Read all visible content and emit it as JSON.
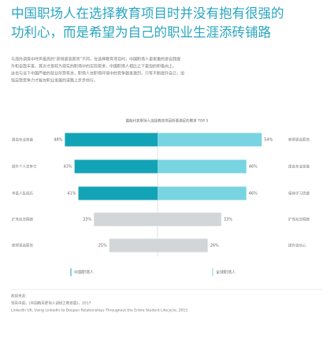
{
  "header": {
    "title_lines": [
      "中国职场人在选择教育项目时并没有抱有很强的",
      "功利心，而是希望为自己的职业生涯添砖铺路"
    ],
    "paragraph_lines": [
      "与海外调查中呼声最高的“获得更高薪资”不同，在选择教育项目时，中国职场人更看重的是自我提",
      "升和自我丰富，其次才是较为现实的职场中的实际需求，中国职场人相比之下更加的积极向上。",
      "这也与当下中国严峻的就业形势有关，职场人在职场环境中的竞争越发激烈，只有不断提升自己，加",
      "强自我竞争力才能在职业发展的道路上步步前行。"
    ]
  },
  "chart_data": {
    "type": "butterfly",
    "title": "最能代表职场人选择教育项目所要满足的需求 TOP 5",
    "xlim": [
      0,
      60
    ],
    "series": [
      {
        "name": "中国职场人",
        "side": "left",
        "categories": [
          "提高专业技能",
          "提升个人竞争力",
          "丰富人生阅历",
          "扩充社交网络",
          "获得更高薪资"
        ],
        "values": [
          48,
          43,
          41,
          33,
          25
        ],
        "value_labels": [
          "48%",
          "43%",
          "41%",
          "33%",
          "25%"
        ],
        "colors": [
          "#13a3b6",
          "#13a3b6",
          "#13a3b6",
          "#d3d6d9",
          "#d3d6d9"
        ]
      },
      {
        "name": "全球职场人",
        "side": "right",
        "categories": [
          "获得更高薪资",
          "提高专业技能",
          "保持学习思维",
          "扩充社交网络",
          "提升自信心"
        ],
        "values": [
          54,
          46,
          46,
          33,
          26
        ],
        "value_labels": [
          "54%",
          "46%",
          "46%",
          "33%",
          "26%"
        ],
        "colors": [
          "#79d4e2",
          "#79d4e2",
          "#79d4e2",
          "#d3d6d9",
          "#d3d6d9"
        ]
      }
    ]
  },
  "footer": {
    "label": "数据来源：",
    "lines": [
      "领英中国，《中国精英职场人调研之教育篇》，2017",
      "LinkedIn UK, Using LinkedIn to Deepen Relationships Throughout the Entire Student Lifecycle, 2015"
    ]
  }
}
